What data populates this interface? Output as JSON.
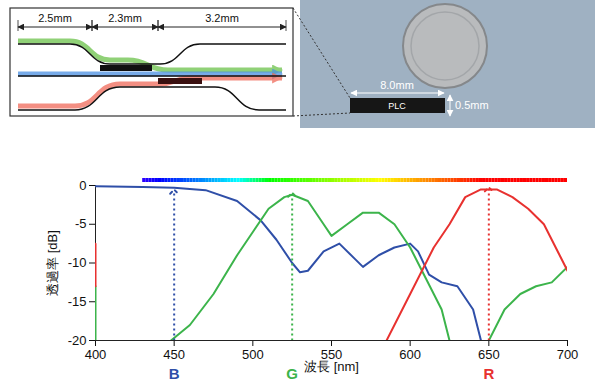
{
  "chart_data": {
    "type": "line",
    "xlabel": "波長 [nm]",
    "ylabel": "透過率 [dB]",
    "xlim": [
      400,
      700
    ],
    "xticks": [
      400,
      450,
      500,
      550,
      600,
      650,
      700
    ],
    "ylim": [
      -20,
      0
    ],
    "yticks": [
      0,
      -5,
      -10,
      -15,
      -20
    ],
    "grid": false,
    "spectrum_band": [
      430,
      700
    ],
    "series": [
      {
        "name": "B",
        "color": "#2f4fa8",
        "x": [
          400,
          430,
          450,
          470,
          490,
          505,
          515,
          525,
          530,
          535,
          545,
          555,
          565,
          570,
          580,
          590,
          600,
          605,
          612,
          620,
          630,
          640,
          645
        ],
        "values": [
          -0.1,
          -0.2,
          -0.3,
          -0.6,
          -2,
          -4.5,
          -7,
          -10,
          -11.2,
          -11,
          -8.5,
          -7.5,
          -9.5,
          -10.5,
          -9,
          -8,
          -7.5,
          -8.5,
          -11.5,
          -12.5,
          -13,
          -16,
          -20
        ]
      },
      {
        "name": "G",
        "color": "#3cb44b",
        "x": [
          400,
          400,
          null,
          448,
          460,
          475,
          490,
          500,
          510,
          520,
          525,
          535,
          545,
          550,
          560,
          570,
          580,
          590,
          600,
          610,
          620,
          625,
          null,
          650,
          660,
          670,
          680,
          690,
          700
        ],
        "values": [
          -13,
          -20,
          null,
          -20,
          -18,
          -14,
          -9,
          -6,
          -3,
          -1.5,
          -1.2,
          -2,
          -5,
          -6.5,
          -5,
          -3.5,
          -3.5,
          -5,
          -8,
          -12,
          -16,
          -20,
          null,
          -20,
          -16,
          -14,
          -13,
          -12.5,
          -10.5
        ]
      },
      {
        "name": "R",
        "color": "#e8312f",
        "x": [
          400,
          400,
          null,
          585,
          600,
          615,
          625,
          635,
          645,
          655,
          665,
          675,
          685,
          695,
          700
        ],
        "values": [
          -7.5,
          -13,
          null,
          -20,
          -14,
          -8,
          -5,
          -1.5,
          -0.5,
          -0.5,
          -1.5,
          -3,
          -5,
          -9,
          -11
        ]
      }
    ],
    "annotations": [
      {
        "text": "B",
        "x": 450,
        "y": -0.8,
        "color": "#2f4fa8"
      },
      {
        "text": "G",
        "x": 525,
        "y": -1.2,
        "color": "#3cb44b"
      },
      {
        "text": "R",
        "x": 650,
        "y": -0.5,
        "color": "#e8312f"
      }
    ]
  },
  "diagram": {
    "dimensions": [
      "2.5mm",
      "2.3mm",
      "3.2mm"
    ]
  },
  "photo": {
    "chip_label": "PLC",
    "length": "8.0mm",
    "thickness": "0.5mm"
  }
}
